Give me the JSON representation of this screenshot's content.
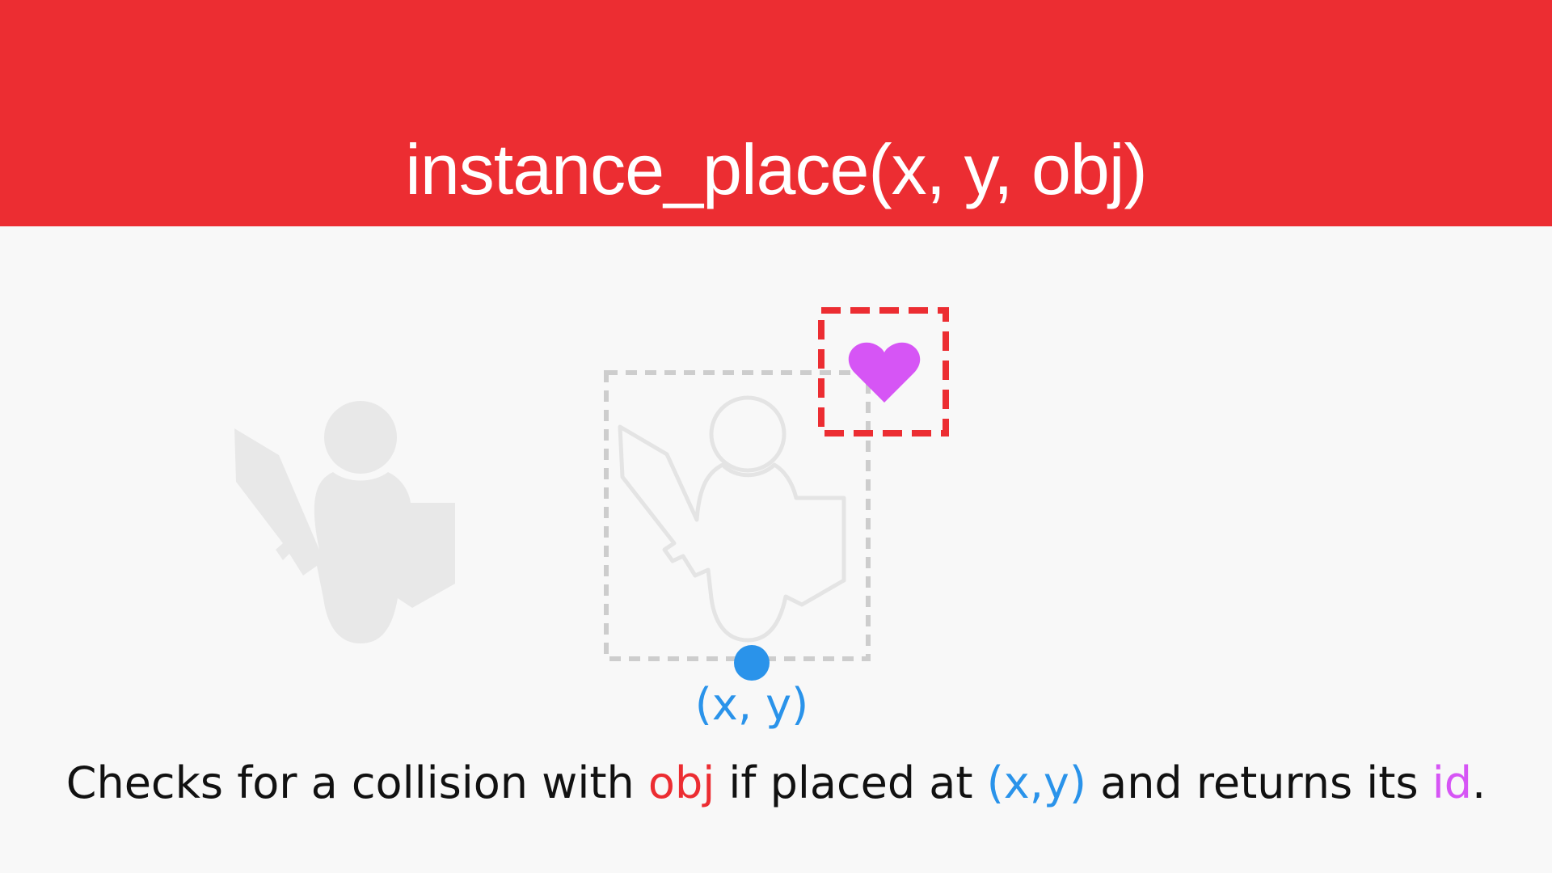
{
  "title": "instance_place(x, y, obj)",
  "coord_label": "(x, y)",
  "caption": {
    "part1": "Checks for a collision with ",
    "obj": "obj",
    "part2": " if placed at ",
    "xy": "(x,y)",
    "part3": " and returns its ",
    "id": "id",
    "part4": "."
  },
  "colors": {
    "header": "#ec2d32",
    "background": "#f8f8f8",
    "obj": "#ec2d32",
    "xy": "#2a93ea",
    "id": "#d655f5",
    "player_fill": "#e8e8e8",
    "player_outline": "#e4e4e4",
    "bbox_dashes": "#cdcdcd",
    "heart": "#d655f5"
  },
  "icons": {
    "player": "knight-with-sword-and-shield-icon",
    "ghost_player": "knight-outline-icon",
    "target": "heart-icon",
    "origin": "origin-point-dot"
  }
}
